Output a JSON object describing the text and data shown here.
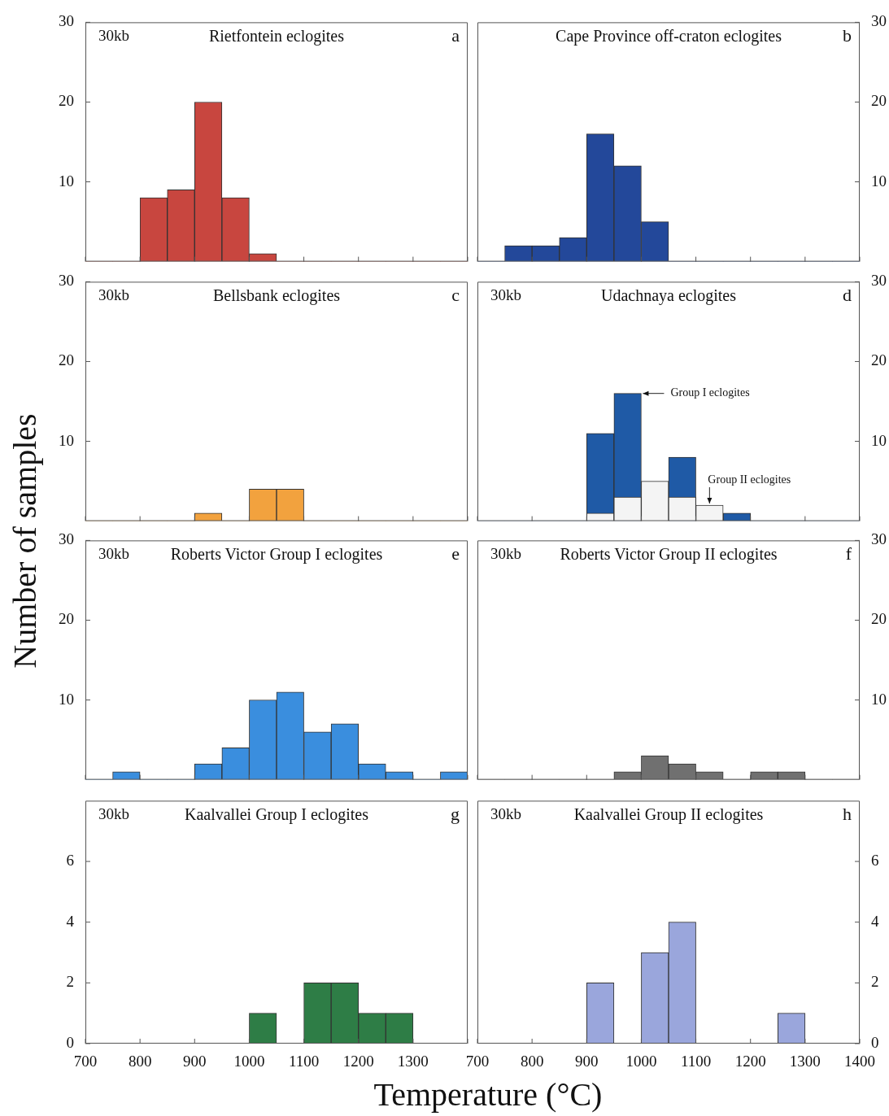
{
  "chart_data": [
    {
      "type": "histogram",
      "title": "Rietfontein eclogites",
      "ylabel": "Number of samples",
      "annotations": [
        "30kb",
        "a"
      ],
      "bins": [
        700,
        750,
        800,
        850,
        900,
        950,
        1000,
        1050,
        1100,
        1150,
        1200,
        1250,
        1300,
        1350,
        1400
      ],
      "values": [
        0,
        0,
        8,
        9,
        20,
        8,
        1,
        0,
        0,
        0,
        0,
        0,
        0,
        0
      ],
      "color": "#c8463f",
      "xlim": [
        700,
        1400
      ],
      "xticks": [
        700,
        800,
        900,
        1000,
        1100,
        1200,
        1300,
        1400
      ],
      "ylim": [
        0,
        30
      ],
      "yticks": [
        10,
        20,
        30
      ],
      "tick_labels": "y"
    },
    {
      "type": "histogram",
      "title": "Cape Province off-craton eclogites",
      "annotations": [
        "b"
      ],
      "bins": [
        700,
        750,
        800,
        850,
        900,
        950,
        1000,
        1050,
        1100,
        1150,
        1200,
        1250,
        1300,
        1350,
        1400
      ],
      "values": [
        0,
        2,
        2,
        3,
        16,
        12,
        5,
        0,
        0,
        0,
        0,
        0,
        0,
        0
      ],
      "color": "#23489a",
      "xlim": [
        700,
        1400
      ],
      "xticks": [
        700,
        800,
        900,
        1000,
        1100,
        1200,
        1300,
        1400
      ],
      "ylim": [
        0,
        30
      ],
      "yticks": [
        10,
        20,
        30
      ],
      "tick_labels": "y"
    },
    {
      "type": "histogram",
      "title": "Bellsbank eclogites",
      "annotations": [
        "30kb",
        "c"
      ],
      "bins": [
        700,
        750,
        800,
        850,
        900,
        950,
        1000,
        1050,
        1100,
        1150,
        1200,
        1250,
        1300,
        1350,
        1400
      ],
      "values": [
        0,
        0,
        0,
        0,
        1,
        0,
        4,
        4,
        0,
        0,
        0,
        0,
        0,
        0
      ],
      "color": "#f2a23e",
      "xlim": [
        700,
        1400
      ],
      "xticks": [
        700,
        800,
        900,
        1000,
        1100,
        1200,
        1300,
        1400
      ],
      "ylim": [
        0,
        30
      ],
      "yticks": [
        10,
        20,
        30
      ],
      "tick_labels": "y"
    },
    {
      "type": "histogram",
      "title": "Udachnaya eclogites",
      "annotations": [
        "30kb",
        "d",
        {
          "text": "Group I eclogites",
          "x": 1000,
          "y": 16
        },
        {
          "text": "Group II eclogites",
          "x": 1125,
          "y": 2
        }
      ],
      "bins": [
        700,
        750,
        800,
        850,
        900,
        950,
        1000,
        1050,
        1100,
        1150,
        1200,
        1250,
        1300,
        1350,
        1400
      ],
      "series": [
        {
          "color": "#1f5aa6",
          "values": [
            0,
            0,
            0,
            0,
            11,
            16,
            null,
            8,
            null,
            1,
            0,
            0,
            0,
            0
          ]
        },
        {
          "color": "#f4f4f4",
          "values": [
            0,
            0,
            0,
            0,
            1,
            3,
            5,
            3,
            2,
            0,
            0,
            0,
            0,
            0
          ]
        }
      ],
      "xlim": [
        700,
        1400
      ],
      "xticks": [
        700,
        800,
        900,
        1000,
        1100,
        1200,
        1300,
        1400
      ],
      "ylim": [
        0,
        30
      ],
      "yticks": [
        10,
        20,
        30
      ],
      "tick_labels": "y"
    },
    {
      "type": "histogram",
      "title": "Roberts Victor Group I eclogites",
      "annotations": [
        "30kb",
        "e"
      ],
      "bins": [
        700,
        750,
        800,
        850,
        900,
        950,
        1000,
        1050,
        1100,
        1150,
        1200,
        1250,
        1300,
        1350,
        1400
      ],
      "values": [
        0,
        1,
        0,
        0,
        2,
        4,
        10,
        11,
        6,
        7,
        2,
        1,
        0,
        1
      ],
      "color": "#3a8ede",
      "xlim": [
        700,
        1400
      ],
      "xticks": [
        700,
        800,
        900,
        1000,
        1100,
        1200,
        1300,
        1400
      ],
      "ylim": [
        0,
        30
      ],
      "yticks": [
        10,
        20,
        30
      ],
      "tick_labels": "y"
    },
    {
      "type": "histogram",
      "title": "Roberts Victor Group II eclogites",
      "annotations": [
        "30kb",
        "f"
      ],
      "bins": [
        700,
        750,
        800,
        850,
        900,
        950,
        1000,
        1050,
        1100,
        1150,
        1200,
        1250,
        1300,
        1350,
        1400
      ],
      "values": [
        0,
        0,
        0,
        0,
        0,
        1,
        3,
        2,
        1,
        0,
        1,
        1,
        0,
        0
      ],
      "color": "#707070",
      "xlim": [
        700,
        1400
      ],
      "xticks": [
        700,
        800,
        900,
        1000,
        1100,
        1200,
        1300,
        1400
      ],
      "ylim": [
        0,
        30
      ],
      "yticks": [
        10,
        20,
        30
      ],
      "tick_labels": "y"
    },
    {
      "type": "histogram",
      "title": "Kaalvallei Group I eclogites",
      "xlabel": "Temperature (°C)",
      "annotations": [
        "30kb",
        "g"
      ],
      "bins": [
        700,
        750,
        800,
        850,
        900,
        950,
        1000,
        1050,
        1100,
        1150,
        1200,
        1250,
        1300,
        1350,
        1400
      ],
      "values": [
        0,
        0,
        0,
        0,
        0,
        0,
        1,
        0,
        2,
        2,
        1,
        1,
        0,
        0
      ],
      "color": "#2e7d46",
      "xlim": [
        700,
        1400
      ],
      "xticks": [
        700,
        800,
        900,
        1000,
        1100,
        1200,
        1300,
        {
          "value": 1400,
          "label": null
        }
      ],
      "ylim": [
        0,
        8
      ],
      "yticks": [
        0,
        2,
        4,
        6
      ]
    },
    {
      "type": "histogram",
      "title": "Kaalvallei Group II eclogites",
      "annotations": [
        "30kb",
        "h"
      ],
      "bins": [
        700,
        750,
        800,
        850,
        900,
        950,
        1000,
        1050,
        1100,
        1150,
        1200,
        1250,
        1300,
        1350,
        1400
      ],
      "values": [
        0,
        0,
        0,
        0,
        2,
        0,
        3,
        4,
        0,
        0,
        0,
        1,
        0,
        0
      ],
      "color": "#9aa6dc",
      "xlim": [
        700,
        1400
      ],
      "xticks": [
        700,
        800,
        900,
        1000,
        1100,
        1200,
        1300,
        1400
      ],
      "ylim": [
        0,
        8
      ],
      "yticks": [
        0,
        2,
        4,
        6
      ]
    }
  ]
}
